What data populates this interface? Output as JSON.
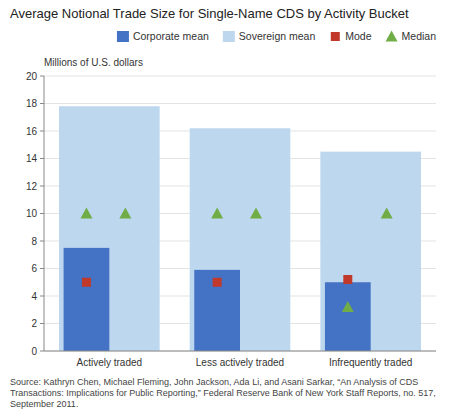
{
  "chart_data": {
    "type": "bar",
    "title": "Average Notional Trade Size for Single-Name CDS by Activity Bucket",
    "y_label": "Millions of U.S. dollars",
    "categories": [
      "Actively traded",
      "Less actively traded",
      "Infrequently traded"
    ],
    "series": [
      {
        "name": "Corporate mean",
        "type": "bar",
        "color": "#4472C4",
        "values": [
          7.5,
          5.9,
          5.0
        ]
      },
      {
        "name": "Sovereign mean",
        "type": "bar",
        "color": "#BDD7EE",
        "values": [
          17.8,
          16.2,
          14.5
        ]
      },
      {
        "name": "Mode",
        "type": "scatter",
        "marker": "square",
        "color": "#C0392B",
        "values": [
          5.0,
          5.0,
          5.2
        ]
      },
      {
        "name": "Median",
        "type": "scatter",
        "marker": "triangle",
        "color": "#70AD47",
        "values": [
          10.0,
          10.0,
          3.2
        ]
      },
      {
        "name": "Median",
        "type": "scatter",
        "marker": "triangle",
        "color": "#70AD47",
        "values": [
          10.0,
          10.0,
          10.0
        ]
      }
    ],
    "ylim": [
      0,
      20
    ],
    "yticks": [
      0,
      2,
      4,
      6,
      8,
      10,
      12,
      14,
      16,
      18,
      20
    ],
    "grid": true,
    "legend": "upper right",
    "source": "Source: Kathryn Chen, Michael Fleming, John Jackson, Ada Li, and Asani Sarkar, “An Analysis of CDS\nTransactions: Implications for Public Reporting,” Federal Reserve Bank of New York Staff Reports, no. 517,\nSeptember 2011."
  }
}
